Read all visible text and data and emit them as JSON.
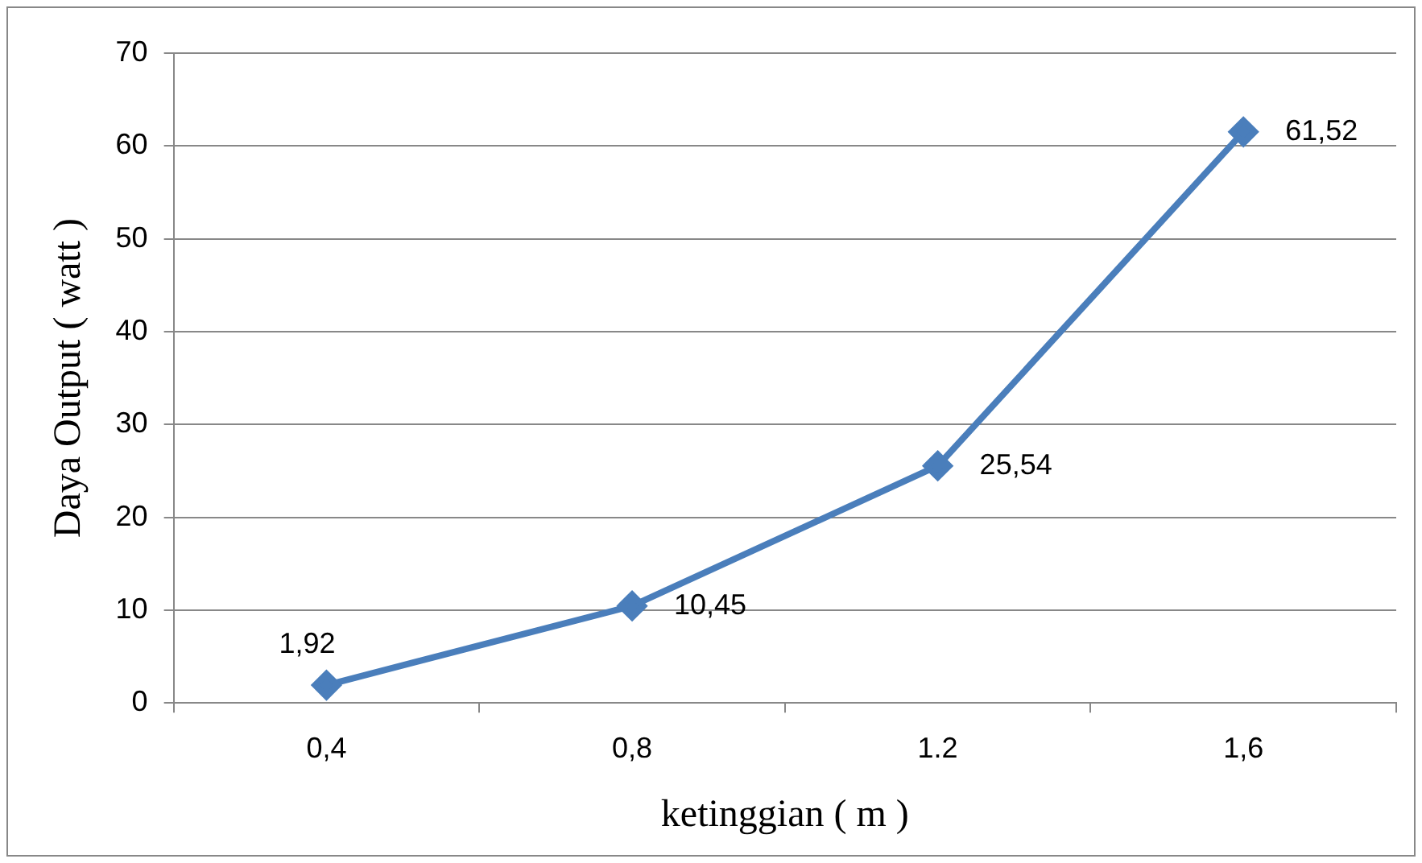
{
  "chart_data": {
    "type": "line",
    "xlabel": "ketinggian ( m )",
    "ylabel": "Daya Output ( watt )",
    "categories": [
      "0,4",
      "0,8",
      "1.2",
      "1,6"
    ],
    "series": [
      {
        "color": "#4a7ebb",
        "values": [
          1.92,
          10.45,
          25.54,
          61.52
        ],
        "value_labels": [
          "1,92",
          "10,45",
          "25,54",
          "61,52"
        ]
      }
    ],
    "ylim": [
      0,
      70
    ],
    "yticks": [
      0,
      10,
      20,
      30,
      40,
      50,
      60,
      70
    ],
    "grid": "y",
    "legend": false,
    "marker": "diamond",
    "line_style": "solid"
  }
}
